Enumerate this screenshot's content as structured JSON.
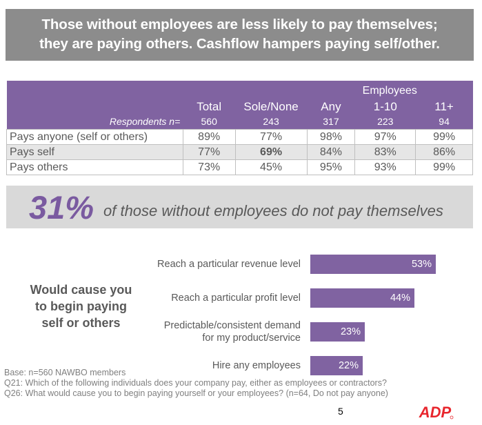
{
  "title": {
    "line1": "Those without employees are less likely to pay themselves;",
    "line2": "they are paying others. Cashflow hampers paying self/other."
  },
  "table": {
    "group_header": "Employees",
    "columns": [
      "Total",
      "Sole/None",
      "Any",
      "1-10",
      "11+"
    ],
    "n_label": "Respondents n=",
    "n_values": [
      "560",
      "243",
      "317",
      "223",
      "94"
    ],
    "rows": [
      {
        "label": "Pays anyone (self or others)",
        "values": [
          "89%",
          "77%",
          "98%",
          "97%",
          "99%"
        ]
      },
      {
        "label": "Pays self",
        "values": [
          "77%",
          "69%",
          "84%",
          "83%",
          "86%"
        ]
      },
      {
        "label": "Pays others",
        "values": [
          "73%",
          "45%",
          "95%",
          "93%",
          "99%"
        ]
      }
    ]
  },
  "callout": {
    "pct": "31%",
    "text": "of those without employees do not pay themselves"
  },
  "side_label": {
    "line1": "Would cause you",
    "line2": "to begin paying",
    "line3": "self or others"
  },
  "chart_data": {
    "type": "bar",
    "orientation": "horizontal",
    "categories": [
      "Reach a particular revenue level",
      "Reach a particular profit level",
      "Predictable/consistent demand for my product/service",
      "Hire any employees"
    ],
    "category_lines": [
      [
        "Reach a particular revenue level"
      ],
      [
        "Reach a particular profit level"
      ],
      [
        "Predictable/consistent demand",
        "for my product/service"
      ],
      [
        "Hire any employees"
      ]
    ],
    "values": [
      53,
      44,
      23,
      22
    ],
    "value_labels": [
      "53%",
      "44%",
      "23%",
      "22%"
    ],
    "xlim": [
      0,
      100
    ],
    "bar_color": "#8063a1",
    "grid": false
  },
  "footnotes": {
    "base": "Base: n=560 NAWBO members",
    "q21": "Q21: Which of the following individuals does your company pay, either as employees or contractors?",
    "q26": "Q26: What would cause you to begin paying yourself or your employees? (n=64, Do not pay anyone)"
  },
  "page_number": "5",
  "logo_text": "ADP",
  "colors": {
    "title_band": "#8c8c8c",
    "table_header": "#8063a1",
    "callout_band": "#d9d9d9",
    "accent_purple": "#7a5aa0",
    "logo_red": "#e8262d"
  }
}
